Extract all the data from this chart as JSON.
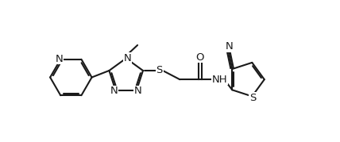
{
  "bg_color": "#ffffff",
  "line_color": "#1a1a1a",
  "line_width": 1.5,
  "font_size": 8.5,
  "fig_width": 4.28,
  "fig_height": 1.79,
  "xlim": [
    0,
    10.5
  ],
  "ylim": [
    -2.8,
    2.8
  ]
}
